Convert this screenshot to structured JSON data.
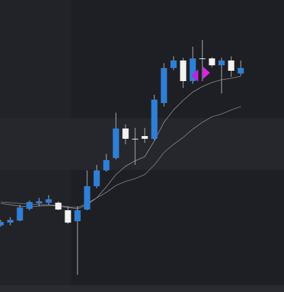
{
  "chart_data": {
    "type": "candlestick",
    "open": [
      97,
      101,
      104,
      121,
      129,
      130,
      130,
      119,
      103,
      120,
      154,
      177,
      195,
      238,
      223,
      227,
      223,
      275,
      326,
      337,
      307,
      340,
      340,
      330,
      337,
      318
    ],
    "high": [
      105,
      109,
      127,
      133,
      137,
      141,
      132,
      125,
      125,
      177,
      185,
      201,
      261,
      244,
      239,
      239,
      287,
      333,
      343,
      341,
      357,
      367,
      342,
      341,
      343,
      337
    ],
    "low": [
      95,
      97,
      103,
      119,
      125,
      127,
      119,
      99,
      25,
      119,
      151,
      175,
      193,
      215,
      185,
      217,
      221,
      270,
      323,
      297,
      303,
      307,
      327,
      289,
      313,
      315
    ],
    "close": [
      102,
      105,
      123,
      131,
      132,
      135,
      120,
      101,
      119,
      154,
      177,
      192,
      238,
      223,
      222,
      223,
      280,
      326,
      337,
      307,
      340,
      339,
      330,
      337,
      322,
      326
    ],
    "up_color": "#2f7fd6",
    "down_color": "#f2f2f2",
    "moving_averages": [
      {
        "color": "#9a9aa0",
        "values": [
          129,
          127,
          125,
          124,
          125,
          126,
          125,
          123,
          121,
          127,
          137,
          153,
          171,
          183,
          191,
          197,
          220,
          247,
          265,
          279,
          291,
          299,
          305,
          309,
          311,
          314
        ]
      },
      {
        "color": "#8a8a90",
        "values": [
          131,
          130,
          129,
          128,
          127,
          127,
          126,
          124,
          123,
          129,
          137,
          145,
          155,
          161,
          165,
          171,
          185,
          203,
          215,
          225,
          237,
          247,
          255,
          259,
          265,
          270
        ]
      }
    ],
    "ylim": [
      0,
      425
    ]
  }
}
